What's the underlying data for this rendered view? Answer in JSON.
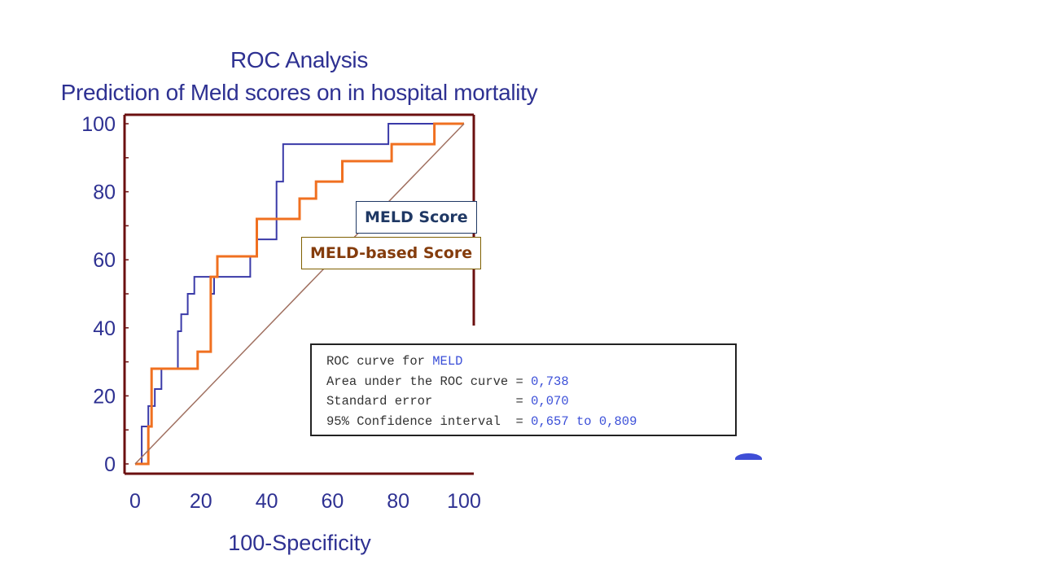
{
  "chart_data": {
    "type": "line",
    "title": "ROC Analysis",
    "subtitle": "Prediction of Meld scores on in hospital mortality",
    "xlabel": "100-Specificity",
    "ylabel": "",
    "xlim": [
      0,
      100
    ],
    "ylim": [
      0,
      100
    ],
    "x_ticks": [
      "0",
      "20",
      "40",
      "60",
      "80",
      "100"
    ],
    "y_ticks": [
      "0",
      "20",
      "40",
      "60",
      "80",
      "100"
    ],
    "grid": false,
    "series": [
      {
        "name": "MELD Score",
        "color": "#3a3aa8",
        "points": [
          [
            0,
            0
          ],
          [
            2,
            0
          ],
          [
            2,
            11
          ],
          [
            4,
            11
          ],
          [
            4,
            17
          ],
          [
            6,
            17
          ],
          [
            6,
            22
          ],
          [
            8,
            22
          ],
          [
            8,
            28
          ],
          [
            13,
            28
          ],
          [
            13,
            39
          ],
          [
            14,
            39
          ],
          [
            14,
            44
          ],
          [
            16,
            44
          ],
          [
            16,
            50
          ],
          [
            18,
            50
          ],
          [
            18,
            55
          ],
          [
            23,
            55
          ],
          [
            23,
            50
          ],
          [
            24,
            50
          ],
          [
            24,
            55
          ],
          [
            35,
            55
          ],
          [
            35,
            61
          ],
          [
            37,
            61
          ],
          [
            37,
            66
          ],
          [
            43,
            66
          ],
          [
            43,
            83
          ],
          [
            45,
            83
          ],
          [
            45,
            94
          ],
          [
            77,
            94
          ],
          [
            77,
            100
          ],
          [
            92,
            100
          ],
          [
            92,
            100
          ],
          [
            100,
            100
          ]
        ]
      },
      {
        "name": "MELD-based Score",
        "color": "#f07020",
        "points": [
          [
            0,
            0
          ],
          [
            4,
            0
          ],
          [
            4,
            11
          ],
          [
            5,
            11
          ],
          [
            5,
            28
          ],
          [
            19,
            28
          ],
          [
            19,
            33
          ],
          [
            23,
            33
          ],
          [
            23,
            55
          ],
          [
            25,
            55
          ],
          [
            25,
            61
          ],
          [
            37,
            61
          ],
          [
            37,
            72
          ],
          [
            50,
            72
          ],
          [
            50,
            78
          ],
          [
            55,
            78
          ],
          [
            55,
            83
          ],
          [
            63,
            83
          ],
          [
            63,
            89
          ],
          [
            78,
            89
          ],
          [
            78,
            94
          ],
          [
            91,
            94
          ],
          [
            91,
            100
          ],
          [
            100,
            100
          ]
        ]
      },
      {
        "name": "",
        "color": "#a07060",
        "points": [
          [
            0,
            0
          ],
          [
            100,
            100
          ]
        ]
      }
    ]
  },
  "legend": {
    "meld": "MELD Score",
    "meld_based": "MELD-based Score"
  },
  "stats": {
    "line1_label": "ROC curve for ",
    "line1_value": "MELD",
    "line2_label": "Area under the ROC curve = ",
    "line2_value": "0,738",
    "line3_label": "Standard error           = ",
    "line3_value": "0,070",
    "line4_label": "95% Confidence interval  = ",
    "line4_value": "0,657 to 0,809"
  }
}
